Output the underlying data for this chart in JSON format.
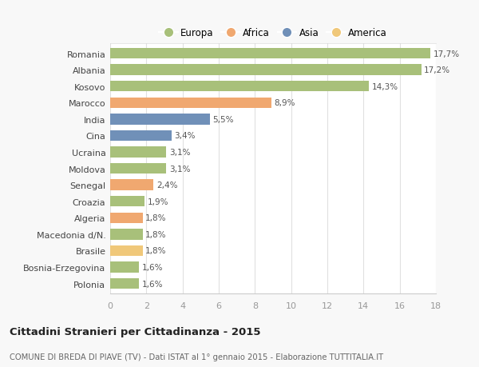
{
  "categories": [
    "Polonia",
    "Bosnia-Erzegovina",
    "Brasile",
    "Macedonia d/N.",
    "Algeria",
    "Croazia",
    "Senegal",
    "Moldova",
    "Ucraina",
    "Cina",
    "India",
    "Marocco",
    "Kosovo",
    "Albania",
    "Romania"
  ],
  "values": [
    1.6,
    1.6,
    1.8,
    1.8,
    1.8,
    1.9,
    2.4,
    3.1,
    3.1,
    3.4,
    5.5,
    8.9,
    14.3,
    17.2,
    17.7
  ],
  "labels": [
    "1,6%",
    "1,6%",
    "1,8%",
    "1,8%",
    "1,8%",
    "1,9%",
    "2,4%",
    "3,1%",
    "3,1%",
    "3,4%",
    "5,5%",
    "8,9%",
    "14,3%",
    "17,2%",
    "17,7%"
  ],
  "colors": [
    "#a8c07a",
    "#a8c07a",
    "#f0c87a",
    "#a8c07a",
    "#f0a870",
    "#a8c07a",
    "#f0a870",
    "#a8c07a",
    "#a8c07a",
    "#7090b8",
    "#7090b8",
    "#f0a870",
    "#a8c07a",
    "#a8c07a",
    "#a8c07a"
  ],
  "legend_labels": [
    "Europa",
    "Africa",
    "Asia",
    "America"
  ],
  "legend_colors": [
    "#a8c07a",
    "#f0a870",
    "#7090b8",
    "#f0c87a"
  ],
  "title": "Cittadini Stranieri per Cittadinanza - 2015",
  "subtitle": "COMUNE DI BREDA DI PIAVE (TV) - Dati ISTAT al 1° gennaio 2015 - Elaborazione TUTTITALIA.IT",
  "xlim": [
    0,
    18
  ],
  "xticks": [
    0,
    2,
    4,
    6,
    8,
    10,
    12,
    14,
    16,
    18
  ],
  "background_color": "#f8f8f8",
  "plot_bg_color": "#ffffff",
  "grid_color": "#e0e0e0",
  "bar_height": 0.65
}
